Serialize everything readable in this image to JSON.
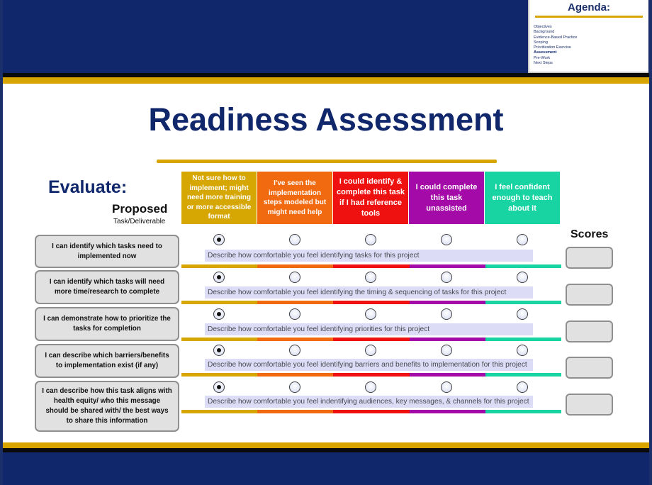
{
  "agenda": {
    "title": "Agenda:",
    "items": [
      "Objectives",
      "Background",
      "Evidence-Based Practice",
      "Scoping",
      "Prioritization Exercise",
      "Assessment",
      "Pre-Work",
      "Next Steps"
    ],
    "active_index": 5
  },
  "title": "Readiness Assessment",
  "evaluate_label": "Evaluate:",
  "proposed_label": "Proposed",
  "task_deliverable_label": "Task/Deliverable",
  "scores_label": "Scores",
  "columns": [
    {
      "label": "Not sure how to implement; might need more training or more accessible format",
      "color": "#d6a603"
    },
    {
      "label": "I've seen the implementation steps modeled but might need help",
      "color": "#f26a10"
    },
    {
      "label": "I could identify & complete this task if I had reference tools",
      "color": "#ee1110"
    },
    {
      "label": "I could complete this task unassisted",
      "color": "#a30aa8"
    },
    {
      "label": "I feel confident enough to teach about it",
      "color": "#18d3a2"
    }
  ],
  "rows": [
    {
      "label": "I can identify which tasks need to implemented now",
      "description": "Describe how comfortable you feel identifying tasks for this project",
      "selected_index": 0,
      "score": ""
    },
    {
      "label": "I can identify which tasks will need more time/research to complete",
      "description": "Describe how comfortable you feel identifying the timing & sequencing of tasks for this project",
      "selected_index": 0,
      "score": ""
    },
    {
      "label": "I can demonstrate how to prioritize the tasks for completion",
      "description": "Describe how comfortable you feel identifying priorities for this project",
      "selected_index": 0,
      "score": ""
    },
    {
      "label": "I can describe which barriers/benefits to implementation exist (if any)",
      "description": "Describe how comfortable you feel identifying barriers and benefits to implementation for this project",
      "selected_index": 0,
      "score": ""
    },
    {
      "label": "I can describe how this task aligns with health equity/ who this message should be shared with/ the best ways to share this information",
      "description": "Describe how comfortable you feel indentifying audiences, key messages, & channels for this project",
      "selected_index": 0,
      "score": ""
    }
  ]
}
